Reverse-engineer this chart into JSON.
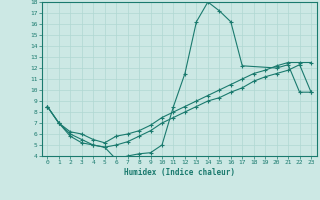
{
  "xlabel": "Humidex (Indice chaleur)",
  "xlim": [
    -0.5,
    23.5
  ],
  "ylim": [
    4,
    18
  ],
  "xticks": [
    0,
    1,
    2,
    3,
    4,
    5,
    6,
    7,
    8,
    9,
    10,
    11,
    12,
    13,
    14,
    15,
    16,
    17,
    18,
    19,
    20,
    21,
    22,
    23
  ],
  "yticks": [
    4,
    5,
    6,
    7,
    8,
    9,
    10,
    11,
    12,
    13,
    14,
    15,
    16,
    17,
    18
  ],
  "line_color": "#1a7a6e",
  "bg_color": "#cce8e4",
  "grid_color": "#b0d8d2",
  "line1_x": [
    0,
    1,
    2,
    3,
    4,
    5,
    6,
    7,
    8,
    9,
    10,
    11,
    12,
    13,
    14,
    15,
    16,
    17,
    20,
    21,
    22,
    23
  ],
  "line1_y": [
    8.5,
    7.0,
    5.8,
    5.2,
    5.0,
    4.8,
    3.7,
    4.0,
    4.2,
    4.3,
    5.0,
    8.5,
    11.5,
    16.2,
    18.0,
    17.2,
    16.2,
    12.2,
    12.0,
    12.3,
    9.8,
    9.8
  ],
  "line2_x": [
    0,
    1,
    2,
    3,
    4,
    5,
    6,
    7,
    8,
    9,
    10,
    11,
    12,
    13,
    14,
    15,
    16,
    17,
    18,
    19,
    20,
    21,
    22,
    23
  ],
  "line2_y": [
    8.5,
    7.0,
    6.2,
    6.0,
    5.5,
    5.2,
    5.8,
    6.0,
    6.3,
    6.8,
    7.5,
    8.0,
    8.5,
    9.0,
    9.5,
    10.0,
    10.5,
    11.0,
    11.5,
    11.8,
    12.2,
    12.5,
    12.5,
    12.5
  ],
  "line3_x": [
    0,
    1,
    2,
    3,
    4,
    5,
    6,
    7,
    8,
    9,
    10,
    11,
    12,
    13,
    14,
    15,
    16,
    17,
    18,
    19,
    20,
    21,
    22,
    23
  ],
  "line3_y": [
    8.5,
    7.0,
    6.0,
    5.5,
    5.0,
    4.8,
    5.0,
    5.3,
    5.8,
    6.3,
    7.0,
    7.5,
    8.0,
    8.5,
    9.0,
    9.3,
    9.8,
    10.2,
    10.8,
    11.2,
    11.5,
    11.8,
    12.3,
    9.8
  ]
}
